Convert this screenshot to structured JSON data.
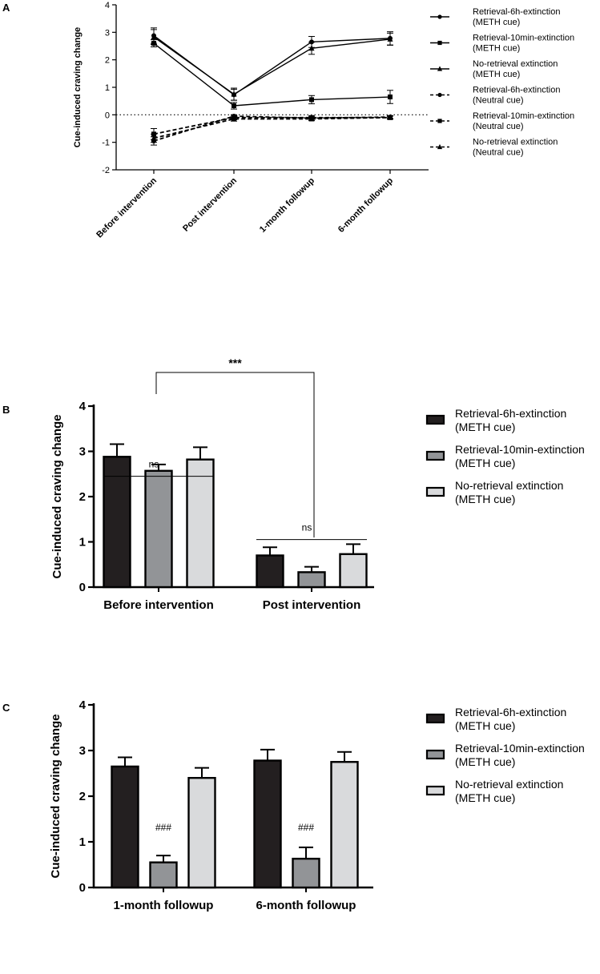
{
  "colors": {
    "bar_series": [
      "#231f20",
      "#929497",
      "#d9dadc"
    ],
    "axis": "#000000"
  },
  "chart_data": [
    {
      "panel": "A",
      "type": "line",
      "ylabel": "Cue-induced craving change",
      "ylim": [
        -2,
        4
      ],
      "yticks": [
        "-2",
        "-1",
        "0",
        "1",
        "2",
        "3",
        "4"
      ],
      "categories": [
        "Before intervention",
        "Post intervention",
        "1-month followup",
        "6-month followup"
      ],
      "zero_line": "dotted",
      "legend_position": "right",
      "series": [
        {
          "name": "Retrieval-6h-extinction\n(METH cue)",
          "marker": "circle",
          "dash": false,
          "values": [
            2.88,
            0.73,
            2.65,
            2.78
          ],
          "err": [
            0.28,
            0.2,
            0.2,
            0.24
          ]
        },
        {
          "name": "Retrieval-10min-extinction\n(METH cue)",
          "marker": "square",
          "dash": false,
          "values": [
            2.6,
            0.33,
            0.55,
            0.65
          ],
          "err": [
            0.13,
            0.12,
            0.15,
            0.24
          ]
        },
        {
          "name": "No-retrieval extinction\n(METH cue)",
          "marker": "triangle",
          "dash": false,
          "values": [
            2.83,
            0.75,
            2.42,
            2.75
          ],
          "err": [
            0.27,
            0.22,
            0.22,
            0.22
          ]
        },
        {
          "name": "Retrieval-6h-extinction\n(Neutral cue)",
          "marker": "circle",
          "dash": true,
          "values": [
            -0.95,
            -0.05,
            -0.12,
            -0.08
          ],
          "err": [
            0.15,
            0.05,
            0.05,
            0.05
          ]
        },
        {
          "name": "Retrieval-10min-extinction\n(Neutral cue)",
          "marker": "square",
          "dash": true,
          "values": [
            -0.7,
            -0.1,
            -0.1,
            -0.1
          ],
          "err": [
            0.2,
            0.08,
            0.06,
            0.06
          ]
        },
        {
          "name": "No-retrieval extinction\n(Neutral cue)",
          "marker": "triangle",
          "dash": true,
          "values": [
            -0.85,
            -0.15,
            -0.15,
            -0.1
          ],
          "err": [
            0.15,
            0.08,
            0.06,
            0.05
          ]
        }
      ]
    },
    {
      "panel": "B",
      "type": "bar",
      "ylabel": "Cue-induced craving change",
      "ylim": [
        0,
        4
      ],
      "yticks": [
        "0",
        "1",
        "2",
        "3",
        "4"
      ],
      "categories": [
        "Before intervention",
        "Post intervention"
      ],
      "legend_position": "right",
      "series": [
        {
          "name": "Retrieval-6h-extinction\n(METH cue)",
          "values": [
            2.88,
            0.7
          ],
          "err": [
            0.28,
            0.18
          ]
        },
        {
          "name": "Retrieval-10min-extinction\n(METH cue)",
          "values": [
            2.57,
            0.33
          ],
          "err": [
            0.14,
            0.12
          ]
        },
        {
          "name": "No-retrieval extinction\n(METH cue)",
          "values": [
            2.82,
            0.73
          ],
          "err": [
            0.27,
            0.22
          ]
        }
      ],
      "annotations": [
        {
          "text": "ns",
          "group": 0
        },
        {
          "text": "ns",
          "group": 1
        },
        {
          "text": "***",
          "from_group": 0,
          "to_group": 1
        }
      ]
    },
    {
      "panel": "C",
      "type": "bar",
      "ylabel": "Cue-induced craving change",
      "ylim": [
        0,
        4
      ],
      "yticks": [
        "0",
        "1",
        "2",
        "3",
        "4"
      ],
      "categories": [
        "1-month followup",
        "6-month followup"
      ],
      "legend_position": "right",
      "series": [
        {
          "name": "Retrieval-6h-extinction\n(METH cue)",
          "values": [
            2.65,
            2.78
          ],
          "err": [
            0.2,
            0.24
          ]
        },
        {
          "name": "Retrieval-10min-extinction\n(METH cue)",
          "values": [
            0.55,
            0.63
          ],
          "err": [
            0.15,
            0.25
          ]
        },
        {
          "name": "No-retrieval extinction\n(METH cue)",
          "values": [
            2.4,
            2.75
          ],
          "err": [
            0.22,
            0.22
          ]
        }
      ],
      "annotations": [
        {
          "text": "###",
          "group": 0,
          "series": 1
        },
        {
          "text": "###",
          "group": 1,
          "series": 1
        }
      ]
    }
  ]
}
